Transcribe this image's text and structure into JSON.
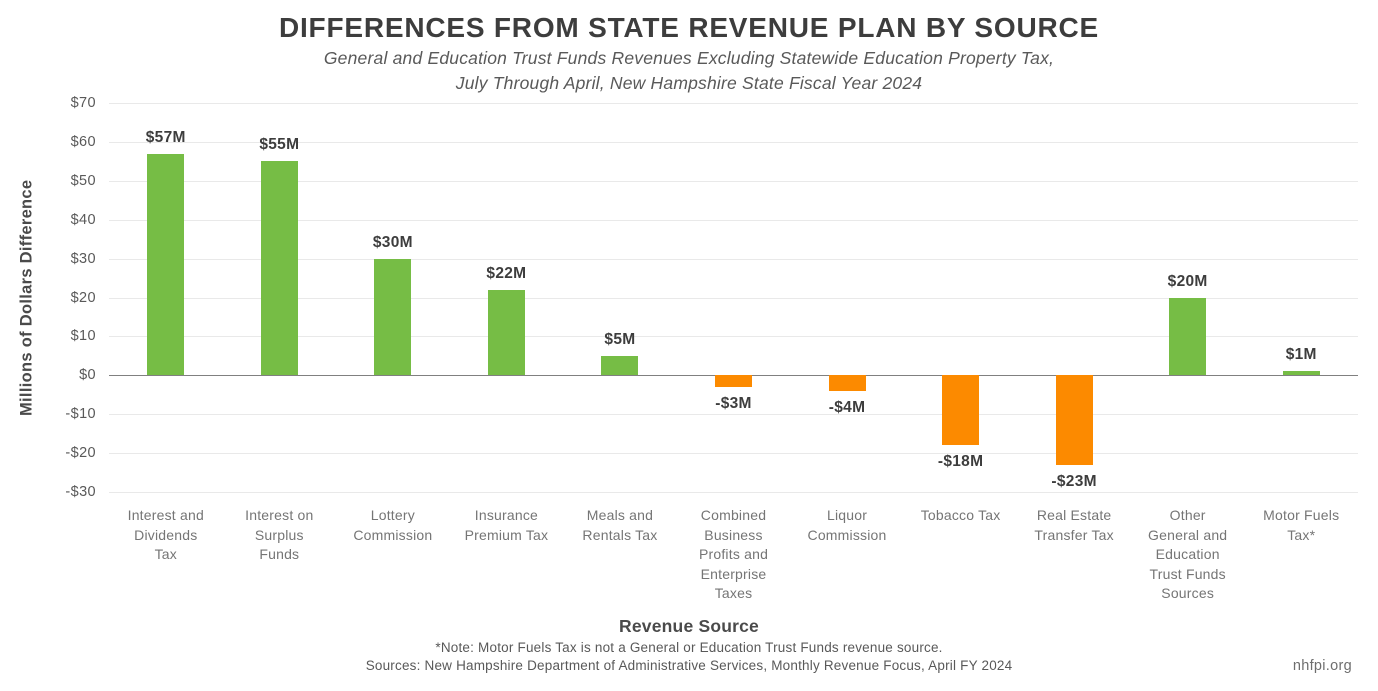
{
  "chart_data": {
    "type": "bar",
    "title": "DIFFERENCES FROM STATE REVENUE PLAN BY SOURCE",
    "subtitle_line1": "General and Education Trust Funds Revenues Excluding Statewide Education Property Tax,",
    "subtitle_line2": "July Through April, New Hampshire State Fiscal Year 2024",
    "xlabel": "Revenue Source",
    "ylabel": "Millions of Dollars Difference",
    "ylim": [
      -30,
      70
    ],
    "grid": "horizontal",
    "legend": "none",
    "yticks": [
      {
        "value": 70,
        "label": "$70"
      },
      {
        "value": 60,
        "label": "$60"
      },
      {
        "value": 50,
        "label": "$50"
      },
      {
        "value": 40,
        "label": "$40"
      },
      {
        "value": 30,
        "label": "$30"
      },
      {
        "value": 20,
        "label": "$20"
      },
      {
        "value": 10,
        "label": "$10"
      },
      {
        "value": 0,
        "label": "$0"
      },
      {
        "value": -10,
        "label": "-$10"
      },
      {
        "value": -20,
        "label": "-$20"
      },
      {
        "value": -30,
        "label": "-$30"
      }
    ],
    "categories": [
      "Interest and\nDividends\nTax",
      "Interest on\nSurplus\nFunds",
      "Lottery\nCommission",
      "Insurance\nPremium Tax",
      "Meals and\nRentals Tax",
      "Combined\nBusiness\nProfits and\nEnterprise\nTaxes",
      "Liquor\nCommission",
      "Tobacco Tax",
      "Real Estate\nTransfer Tax",
      "Other\nGeneral and\nEducation\nTrust Funds\nSources",
      "Motor Fuels\nTax*"
    ],
    "values": [
      57,
      55,
      30,
      22,
      5,
      -3,
      -4,
      -18,
      -23,
      20,
      1
    ],
    "bar_labels": [
      "$57M",
      "$55M",
      "$30M",
      "$22M",
      "$5M",
      "-$3M",
      "-$4M",
      "-$18M",
      "-$23M",
      "$20M",
      "$1M"
    ],
    "colors": {
      "positive": "#76BD45",
      "negative": "#FC8A00",
      "gridline": "#e9e9e9",
      "zero_line": "#808080"
    }
  },
  "footer": {
    "note": "*Note: Motor Fuels Tax is not a General or Education Trust Funds revenue source.",
    "sources": "Sources: New Hampshire Department of Administrative Services, Monthly Revenue Focus, April FY 2024",
    "site": "nhfpi.org"
  }
}
